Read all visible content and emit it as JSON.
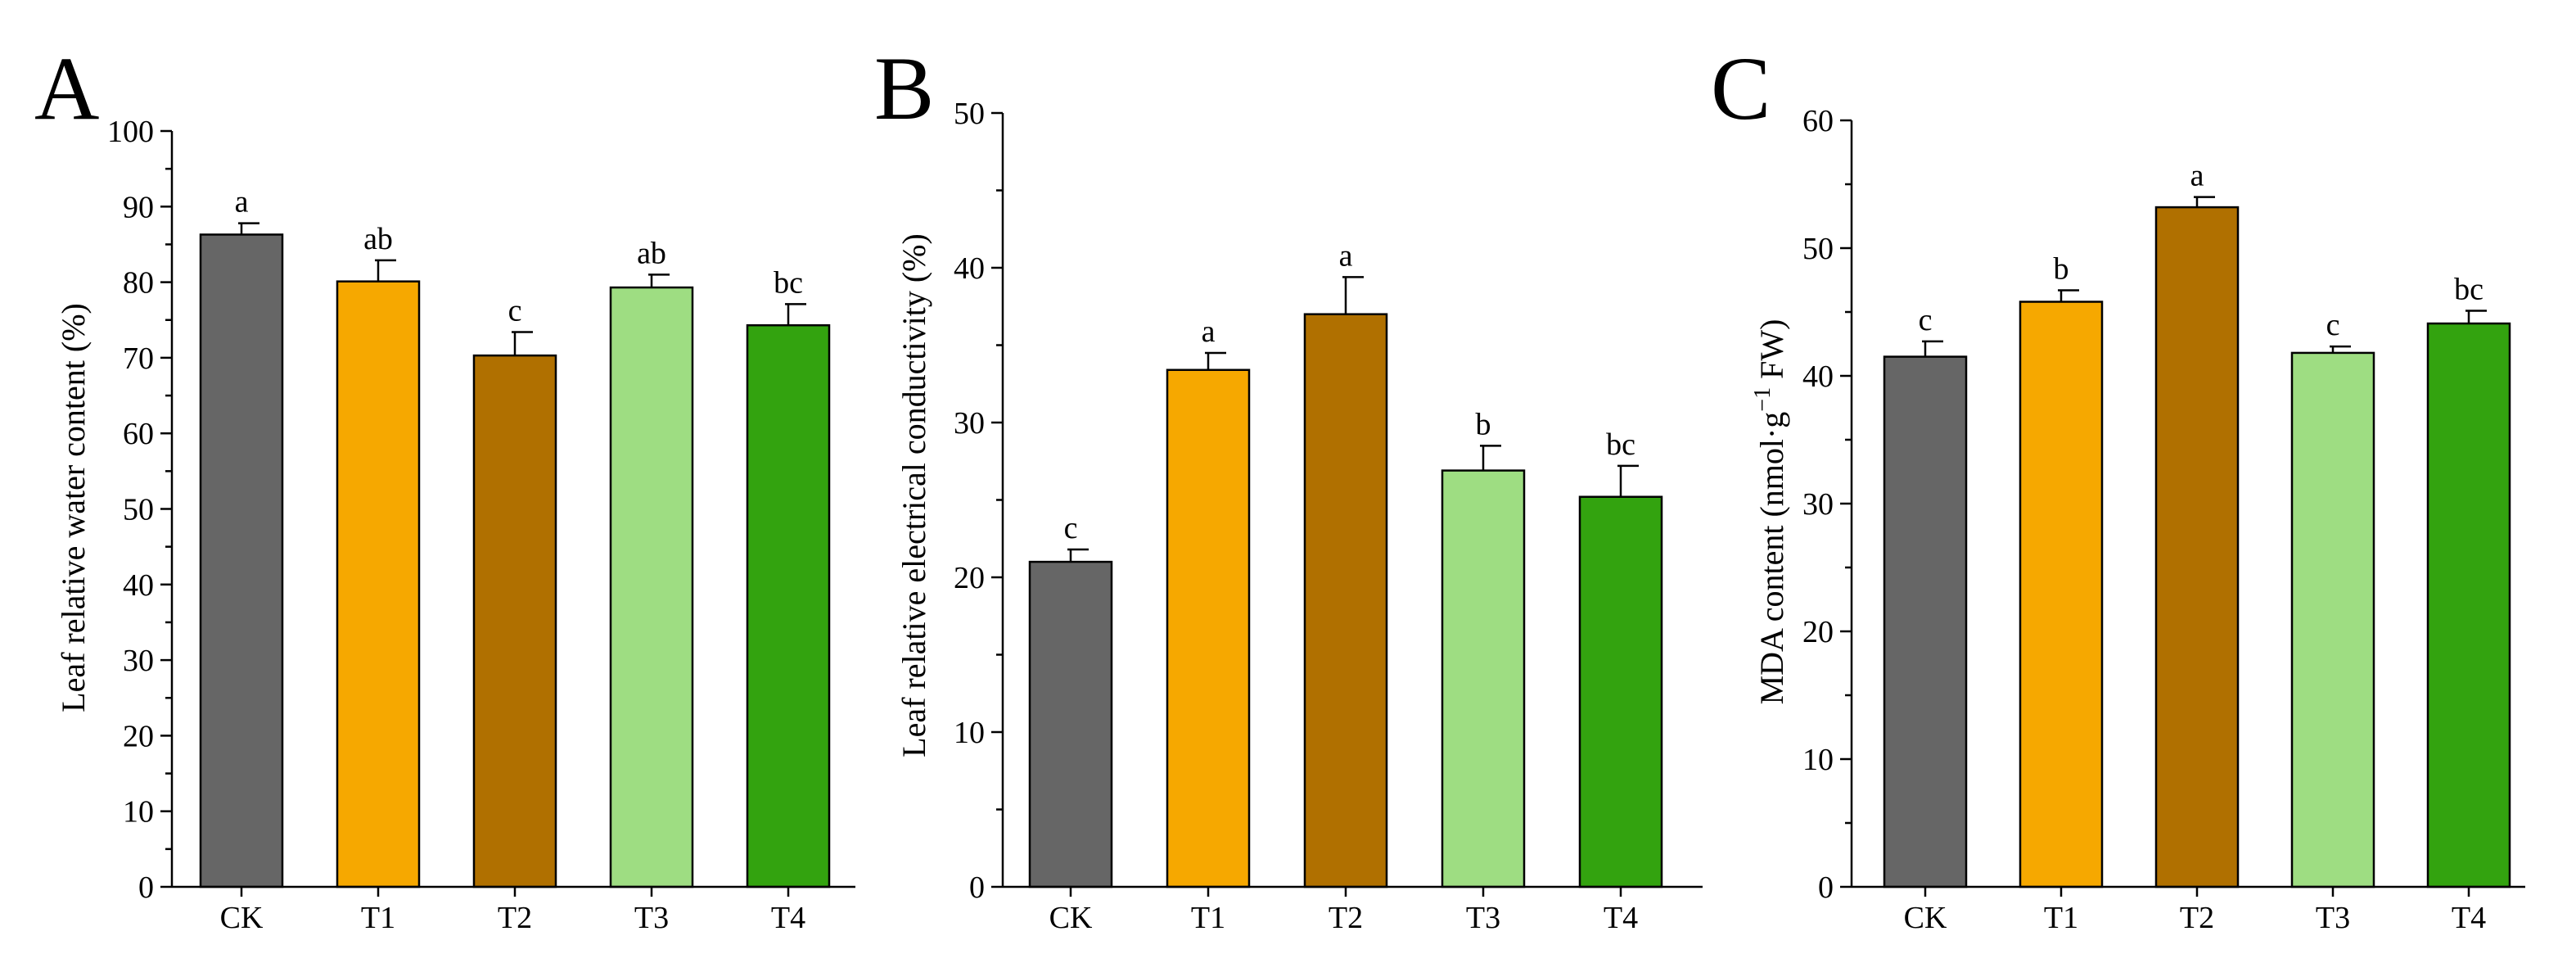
{
  "chart_data": [
    {
      "panel": "A",
      "type": "bar",
      "categories": [
        "CK",
        "T1",
        "T2",
        "T3",
        "T4"
      ],
      "values": [
        86.3,
        80.1,
        70.3,
        79.3,
        74.3
      ],
      "errors": [
        1.5,
        2.8,
        3.1,
        1.7,
        2.8
      ],
      "significance": [
        "a",
        "ab",
        "c",
        "ab",
        "bc"
      ],
      "colors": [
        "#666666",
        "#f6a800",
        "#b07000",
        "#9edd82",
        "#33a30f"
      ],
      "ylabel": "Leaf relative water content (%)",
      "xlabel": "",
      "ylim": [
        0,
        100
      ],
      "yticks": [
        0,
        10,
        20,
        30,
        40,
        50,
        60,
        70,
        80,
        90,
        100
      ]
    },
    {
      "panel": "B",
      "type": "bar",
      "categories": [
        "CK",
        "T1",
        "T2",
        "T3",
        "T4"
      ],
      "values": [
        21.0,
        33.4,
        37.0,
        26.9,
        25.2
      ],
      "errors": [
        0.8,
        1.1,
        2.4,
        1.6,
        2.0
      ],
      "significance": [
        "c",
        "a",
        "a",
        "b",
        "bc"
      ],
      "colors": [
        "#666666",
        "#f6a800",
        "#b07000",
        "#9edd82",
        "#33a30f"
      ],
      "ylabel": "Leaf relative electrical conductivity (%)",
      "xlabel": "",
      "ylim": [
        0,
        50
      ],
      "yticks": [
        0,
        10,
        20,
        30,
        40,
        50
      ]
    },
    {
      "panel": "C",
      "type": "bar",
      "categories": [
        "CK",
        "T1",
        "T2",
        "T3",
        "T4"
      ],
      "values": [
        41.5,
        45.8,
        53.2,
        41.8,
        44.1
      ],
      "errors": [
        1.2,
        0.9,
        0.8,
        0.5,
        1.0
      ],
      "significance": [
        "c",
        "b",
        "a",
        "c",
        "bc"
      ],
      "colors": [
        "#666666",
        "#f6a800",
        "#b07000",
        "#9edd82",
        "#33a30f"
      ],
      "ylabel": "MDA content (nmol·g",
      "ylabel_sup": "−1",
      "ylabel_tail": " FW)",
      "xlabel": "",
      "ylim": [
        0,
        60
      ],
      "yticks": [
        0,
        10,
        20,
        30,
        40,
        50,
        60
      ]
    }
  ]
}
